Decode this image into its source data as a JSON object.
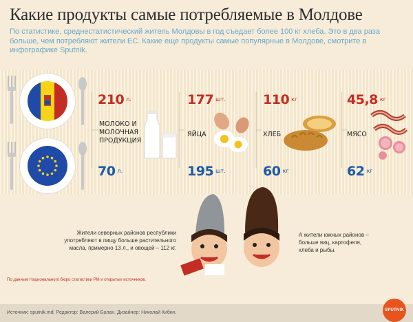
{
  "header": {
    "title": "Какие продукты самые потребляемые в Молдове",
    "subtitle": "По статистике, среднестатистический житель Молдовы в год съедает более 100 кг хлеба. Это в два раза больше, чем потребляют жители ЕС. Какие еще продукты самые популярные в Молдове, смотрите в инфографике Sputnik."
  },
  "products": [
    {
      "label": "Молоко и молочная продукция",
      "moldova_value": "210",
      "moldova_unit": "л.",
      "eu_value": "70",
      "eu_unit": "л."
    },
    {
      "label": "Яйца",
      "moldova_value": "177",
      "moldova_unit": "шт.",
      "eu_value": "195",
      "eu_unit": "шт."
    },
    {
      "label": "Хлеб",
      "moldova_value": "110",
      "moldova_unit": "кг",
      "eu_value": "60",
      "eu_unit": "кг"
    },
    {
      "label": "Мясо",
      "moldova_value": "45,8",
      "moldova_unit": "кг",
      "eu_value": "62",
      "eu_unit": "кг"
    }
  ],
  "notes": {
    "north": "Жители северных районов республики употребляют в пищу больше растительного масла, примерно 13 л., и овощей – 112 кг.",
    "south": "А жители южных районов – больше яиц, картофеля, хлеба и рыбы."
  },
  "data_source": "По данным Национального бюро статистики РМ и открытых источников.",
  "footer": "Источник: sputnik.md. Редактор: Валерий Балан. Дизайнер: Николай Кибин.",
  "brand": "SPUTNIK",
  "colors": {
    "background": "#f6ecd9",
    "moldova_red": "#c42d24",
    "eu_blue": "#1f5aa5",
    "subtitle_blue": "#6aa7c8",
    "brand_orange": "#e8541e"
  }
}
